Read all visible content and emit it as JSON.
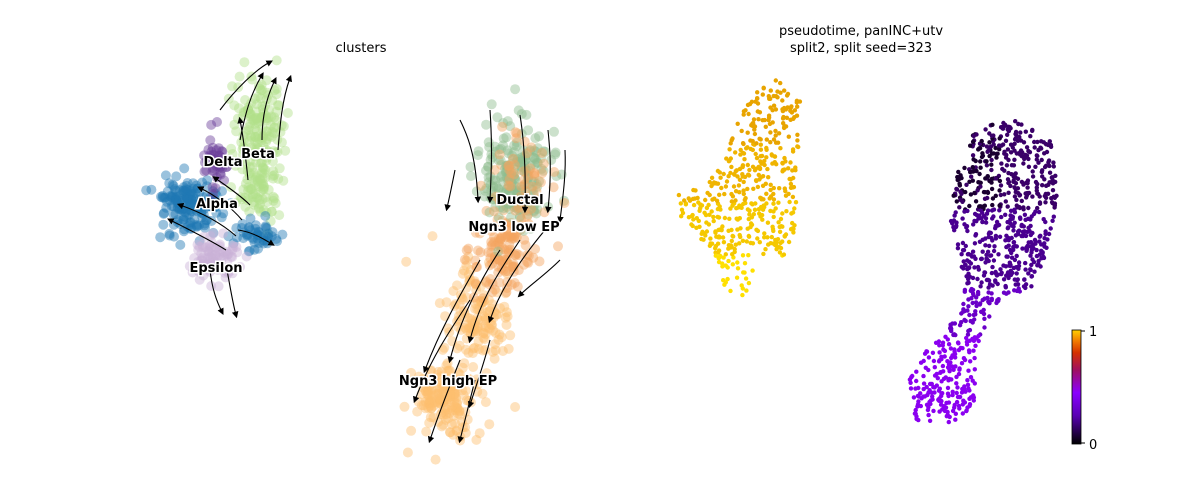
{
  "chart_data": [
    {
      "type": "scatter",
      "title": "clusters",
      "grid": false,
      "legend": "on data",
      "overlay": "velocity streamlines with arrows",
      "clusters": [
        {
          "name": "Ductal",
          "color": "#8fbc8f"
        },
        {
          "name": "Ngn3 low EP",
          "color": "#f4a460"
        },
        {
          "name": "Ngn3 high EP",
          "color": "#fdbf6f"
        },
        {
          "name": "Alpha",
          "color": "#1f77b4"
        },
        {
          "name": "Beta",
          "color": "#b2df8a"
        },
        {
          "name": "Delta",
          "color": "#6a3d9a"
        },
        {
          "name": "Epsilon",
          "color": "#cab2d6"
        }
      ]
    },
    {
      "type": "scatter",
      "title": "pseudotime, panINC+utv",
      "subtitle": "split2, split seed=323",
      "grid": false,
      "colorbar": {
        "min": 0,
        "max": 1,
        "ticks": [
          "1",
          "0"
        ],
        "colormap": "gnuplot"
      }
    }
  ]
}
